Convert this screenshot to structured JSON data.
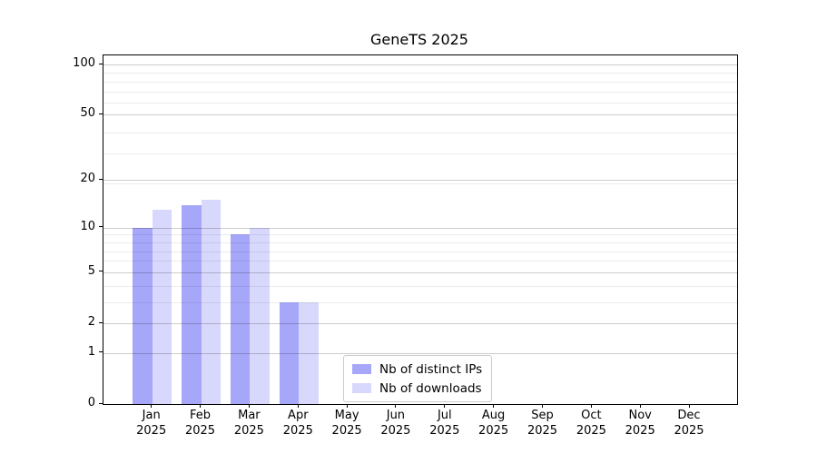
{
  "chart_data": {
    "type": "bar",
    "title": "GeneTS 2025",
    "x_year": "2025",
    "categories": [
      "Jan",
      "Feb",
      "Mar",
      "Apr",
      "May",
      "Jun",
      "Jul",
      "Aug",
      "Sep",
      "Oct",
      "Nov",
      "Dec"
    ],
    "series": [
      {
        "name": "Nb of distinct IPs",
        "color": "#a7a7fa",
        "values": [
          10,
          14,
          9,
          3,
          0,
          0,
          0,
          0,
          0,
          0,
          0,
          0
        ]
      },
      {
        "name": "Nb of downloads",
        "color": "#d8d8fc",
        "values": [
          13,
          15,
          10,
          3,
          0,
          0,
          0,
          0,
          0,
          0,
          0,
          0
        ]
      }
    ],
    "y_axis": {
      "scale": "log10(1+v)",
      "tick_values": [
        0,
        1,
        2,
        5,
        10,
        20,
        50,
        100
      ],
      "tick_labels": [
        "0",
        "1",
        "2",
        "5",
        "10",
        "20",
        "50",
        "100"
      ],
      "minor_tick_values": [
        3,
        4,
        6,
        7,
        8,
        9,
        19,
        29,
        39,
        59,
        69,
        79,
        89
      ],
      "range_max": 114
    },
    "grid": true,
    "legend_position": "lower-center"
  }
}
